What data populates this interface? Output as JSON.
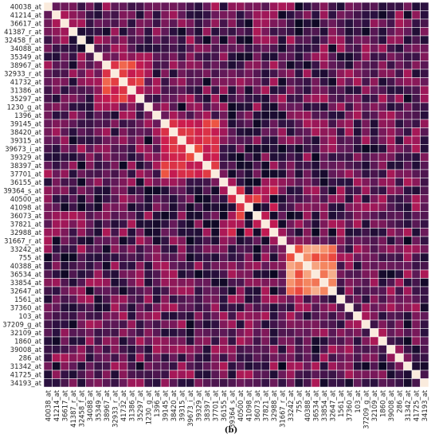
{
  "caption": "(b)",
  "chart_data": {
    "type": "heatmap",
    "title": "",
    "xlabel": "",
    "ylabel": "",
    "grid": true,
    "legend": "none",
    "diagonal_value": 1.0,
    "labels": [
      "40038_at",
      "41214_at",
      "36617_at",
      "41387_r_at",
      "32458_f_at",
      "34088_at",
      "35349_at",
      "38967_at",
      "32933_r_at",
      "41732_at",
      "31386_at",
      "35297_at",
      "1230_g_at",
      "1396_at",
      "39145_at",
      "38420_at",
      "39315_at",
      "39673_i_at",
      "39329_at",
      "38397_at",
      "37701_at",
      "36155_at",
      "39364_s_at",
      "40500_at",
      "41098_at",
      "36073_at",
      "37821_at",
      "32988_at",
      "31667_r_at",
      "33242_at",
      "755_at",
      "40388_at",
      "36534_at",
      "33854_at",
      "32647_at",
      "1561_at",
      "37360_at",
      "103_at",
      "37209_g_at",
      "32109_at",
      "1860_at",
      "39008_at",
      "286_at",
      "31342_at",
      "41725_at",
      "34193_at"
    ],
    "value_range": [
      0,
      1
    ],
    "high_correlation_blocks": [
      {
        "from": "38967_at",
        "to": "35297_at",
        "value": 0.7
      },
      {
        "from": "39145_at",
        "to": "37701_at",
        "value": 0.68
      },
      {
        "from": "39364_s_at",
        "to": "32988_at",
        "value": 0.62
      },
      {
        "from": "33242_at",
        "to": "32647_at",
        "value": 0.85
      }
    ],
    "colors": {
      "low": "#03051a",
      "mid": "#cb1b4f",
      "high": "#fae0c7",
      "grid": "#ffffff"
    }
  }
}
